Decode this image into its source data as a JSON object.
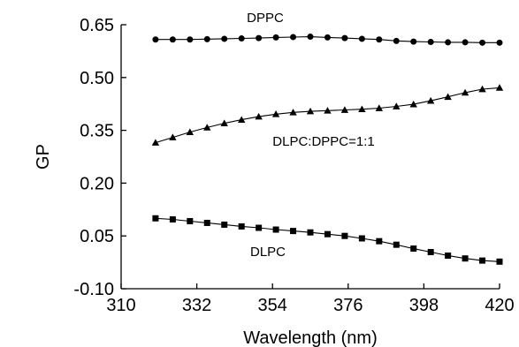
{
  "chart_data": {
    "type": "line",
    "xlabel": "Wavelength (nm)",
    "ylabel": "GP",
    "xlim": [
      310,
      420
    ],
    "ylim": [
      -0.1,
      0.65
    ],
    "xticks": [
      310,
      332,
      354,
      376,
      398,
      420
    ],
    "xtick_labels": [
      "310",
      "332",
      "354",
      "376",
      "398",
      "420"
    ],
    "yticks": [
      -0.1,
      0.05,
      0.2,
      0.35,
      0.5,
      0.65
    ],
    "ytick_labels": [
      "-0.10",
      "0.05",
      "0.20",
      "0.35",
      "0.50",
      "0.65"
    ],
    "grid": false,
    "series": [
      {
        "name": "DPPC",
        "marker": "circle",
        "x": [
          320,
          325,
          330,
          335,
          340,
          345,
          350,
          355,
          360,
          365,
          370,
          375,
          380,
          385,
          390,
          395,
          400,
          405,
          410,
          415,
          420
        ],
        "y": [
          0.608,
          0.608,
          0.608,
          0.609,
          0.61,
          0.611,
          0.612,
          0.614,
          0.615,
          0.616,
          0.614,
          0.612,
          0.61,
          0.608,
          0.604,
          0.602,
          0.601,
          0.6,
          0.6,
          0.599,
          0.599
        ]
      },
      {
        "name": "DLPC:DPPC=1:1",
        "marker": "triangle",
        "x": [
          320,
          325,
          330,
          335,
          340,
          345,
          350,
          355,
          360,
          365,
          370,
          375,
          380,
          385,
          390,
          395,
          400,
          405,
          410,
          415,
          420
        ],
        "y": [
          0.315,
          0.33,
          0.345,
          0.358,
          0.37,
          0.38,
          0.389,
          0.396,
          0.401,
          0.404,
          0.406,
          0.408,
          0.41,
          0.413,
          0.418,
          0.424,
          0.434,
          0.445,
          0.457,
          0.467,
          0.471
        ]
      },
      {
        "name": "DLPC",
        "marker": "square",
        "x": [
          320,
          325,
          330,
          335,
          340,
          345,
          350,
          355,
          360,
          365,
          370,
          375,
          380,
          385,
          390,
          395,
          400,
          405,
          410,
          415,
          420
        ],
        "y": [
          0.1,
          0.097,
          0.092,
          0.087,
          0.082,
          0.077,
          0.073,
          0.068,
          0.064,
          0.06,
          0.055,
          0.05,
          0.043,
          0.035,
          0.025,
          0.014,
          0.004,
          -0.006,
          -0.014,
          -0.02,
          -0.023
        ]
      }
    ]
  }
}
